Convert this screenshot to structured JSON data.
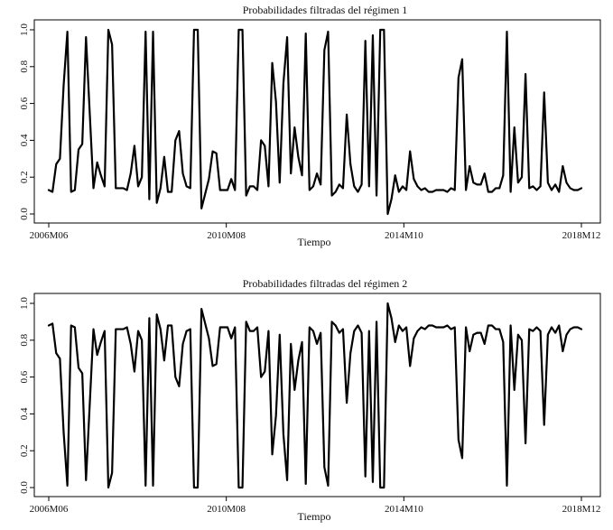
{
  "chart_data": [
    {
      "type": "line",
      "title": "Probabilidades filtradas del régimen 1",
      "xlabel": "Tiempo",
      "ylabel": "",
      "x_tick_labels": [
        "2006M06",
        "2010M08",
        "2014M10",
        "2018M12"
      ],
      "y_tick_labels": [
        "0.0",
        "0.2",
        "0.4",
        "0.6",
        "0.8",
        "1.0"
      ],
      "ylim": [
        0,
        1
      ],
      "grid": false,
      "series": [
        {
          "values": [
            0.13,
            0.12,
            0.27,
            0.3,
            0.7,
            0.99,
            0.12,
            0.13,
            0.35,
            0.38,
            0.96,
            0.55,
            0.14,
            0.28,
            0.21,
            0.15,
            1.0,
            0.92,
            0.14,
            0.14,
            0.14,
            0.13,
            0.22,
            0.37,
            0.15,
            0.2,
            0.99,
            0.08,
            0.99,
            0.06,
            0.14,
            0.31,
            0.12,
            0.12,
            0.4,
            0.45,
            0.22,
            0.15,
            0.14,
            1.0,
            1.0,
            0.03,
            0.11,
            0.19,
            0.34,
            0.33,
            0.13,
            0.13,
            0.13,
            0.19,
            0.13,
            1.0,
            1.0,
            0.1,
            0.15,
            0.15,
            0.13,
            0.4,
            0.37,
            0.15,
            0.82,
            0.61,
            0.17,
            0.71,
            0.96,
            0.22,
            0.47,
            0.31,
            0.21,
            0.98,
            0.13,
            0.15,
            0.22,
            0.16,
            0.89,
            0.99,
            0.1,
            0.12,
            0.16,
            0.14,
            0.54,
            0.27,
            0.15,
            0.12,
            0.16,
            0.94,
            0.15,
            0.97,
            0.1,
            1.0,
            1.0,
            0.0,
            0.08,
            0.21,
            0.12,
            0.15,
            0.13,
            0.34,
            0.19,
            0.15,
            0.13,
            0.14,
            0.12,
            0.12,
            0.13,
            0.13,
            0.13,
            0.12,
            0.14,
            0.13,
            0.74,
            0.84,
            0.13,
            0.26,
            0.17,
            0.16,
            0.16,
            0.22,
            0.12,
            0.12,
            0.14,
            0.14,
            0.21,
            0.99,
            0.12,
            0.47,
            0.17,
            0.2,
            0.76,
            0.14,
            0.15,
            0.13,
            0.15,
            0.66,
            0.17,
            0.13,
            0.16,
            0.12,
            0.26,
            0.17,
            0.14,
            0.13,
            0.13,
            0.14
          ]
        }
      ]
    },
    {
      "type": "line",
      "title": "Probabilidades filtradas del régimen 2",
      "xlabel": "Tiempo",
      "ylabel": "",
      "x_tick_labels": [
        "2006M06",
        "2010M08",
        "2014M10",
        "2018M12"
      ],
      "y_tick_labels": [
        "0.0",
        "0.2",
        "0.4",
        "0.6",
        "0.8",
        "1.0"
      ],
      "ylim": [
        0,
        1
      ],
      "grid": false,
      "series": [
        {
          "values": [
            0.88,
            0.89,
            0.73,
            0.7,
            0.3,
            0.01,
            0.88,
            0.87,
            0.65,
            0.62,
            0.04,
            0.45,
            0.86,
            0.72,
            0.79,
            0.85,
            0.0,
            0.08,
            0.86,
            0.86,
            0.86,
            0.87,
            0.78,
            0.63,
            0.85,
            0.8,
            0.01,
            0.92,
            0.01,
            0.94,
            0.86,
            0.69,
            0.88,
            0.88,
            0.6,
            0.55,
            0.78,
            0.85,
            0.86,
            0.0,
            0.0,
            0.97,
            0.89,
            0.81,
            0.66,
            0.67,
            0.87,
            0.87,
            0.87,
            0.81,
            0.87,
            0.0,
            0.0,
            0.9,
            0.85,
            0.85,
            0.87,
            0.6,
            0.63,
            0.85,
            0.18,
            0.39,
            0.83,
            0.29,
            0.04,
            0.78,
            0.53,
            0.69,
            0.79,
            0.02,
            0.87,
            0.85,
            0.78,
            0.84,
            0.11,
            0.01,
            0.9,
            0.88,
            0.84,
            0.86,
            0.46,
            0.73,
            0.85,
            0.88,
            0.84,
            0.06,
            0.85,
            0.03,
            0.9,
            0.0,
            0.0,
            1.0,
            0.92,
            0.79,
            0.88,
            0.85,
            0.87,
            0.66,
            0.81,
            0.85,
            0.87,
            0.86,
            0.88,
            0.88,
            0.87,
            0.87,
            0.87,
            0.88,
            0.86,
            0.87,
            0.26,
            0.16,
            0.87,
            0.74,
            0.83,
            0.84,
            0.84,
            0.78,
            0.88,
            0.88,
            0.86,
            0.86,
            0.79,
            0.01,
            0.88,
            0.53,
            0.83,
            0.8,
            0.24,
            0.86,
            0.85,
            0.87,
            0.85,
            0.34,
            0.83,
            0.87,
            0.84,
            0.88,
            0.74,
            0.83,
            0.86,
            0.87,
            0.87,
            0.86
          ]
        }
      ]
    }
  ]
}
